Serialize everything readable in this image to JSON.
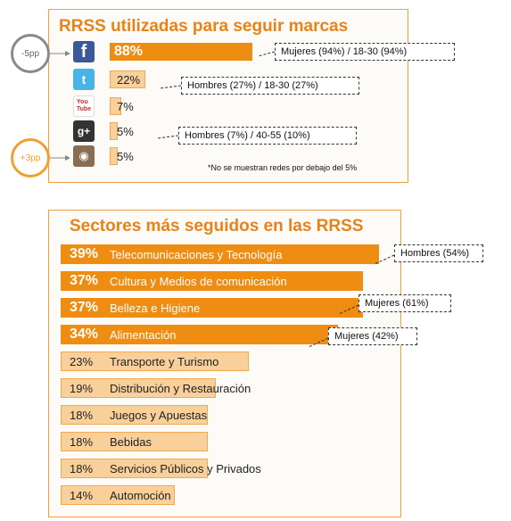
{
  "colors": {
    "accent": "#ef8c12",
    "light_bar": "#f9d09a",
    "badge_down": "#8a8a8a",
    "badge_up": "#f0a030"
  },
  "networks_chart": {
    "title": "RRSS utilizadas para seguir marcas",
    "note": "*No se muestran redes por debajo del 5%",
    "items": [
      {
        "icon": "facebook-icon",
        "label": "88%",
        "value": 88,
        "callout": "Mujeres (94%) / 18-30 (94%)",
        "badge": "-5pp"
      },
      {
        "icon": "twitter-icon",
        "label": "22%",
        "value": 22,
        "callout": "Hombres (27%) / 18-30 (27%)",
        "badge": ""
      },
      {
        "icon": "youtube-icon",
        "label": "7%",
        "value": 7,
        "callout": "",
        "badge": ""
      },
      {
        "icon": "googleplus-icon",
        "label": "5%",
        "value": 5,
        "callout": "Hombres (7%) / 40-55 (10%)",
        "badge": ""
      },
      {
        "icon": "instagram-icon",
        "label": "5%",
        "value": 5,
        "callout": "",
        "badge": "+3pp"
      }
    ]
  },
  "sectors_chart": {
    "title": "Sectores más seguidos en las RRSS",
    "items": [
      {
        "label": "Telecomunicaciones  y Tecnología",
        "pct": "39%",
        "value": 39,
        "callout": "Hombres (54%)"
      },
      {
        "label": "Cultura y Medios de comunicación",
        "pct": "37%",
        "value": 37,
        "callout": ""
      },
      {
        "label": "Belleza e Higiene",
        "pct": "37%",
        "value": 37,
        "callout": "Mujeres (61%)"
      },
      {
        "label": "Alimentación",
        "pct": "34%",
        "value": 34,
        "callout": "Mujeres (42%)"
      },
      {
        "label": "Transporte y Turismo",
        "pct": "23%",
        "value": 23,
        "callout": ""
      },
      {
        "label": "Distribución y Restauración",
        "pct": "19%",
        "value": 19,
        "callout": ""
      },
      {
        "label": "Juegos y Apuestas",
        "pct": "18%",
        "value": 18,
        "callout": ""
      },
      {
        "label": "Bebidas",
        "pct": "18%",
        "value": 18,
        "callout": ""
      },
      {
        "label": "Servicios Públicos y Privados",
        "pct": "18%",
        "value": 18,
        "callout": ""
      },
      {
        "label": "Automoción",
        "pct": "14%",
        "value": 14,
        "callout": ""
      }
    ]
  },
  "chart_data": [
    {
      "type": "bar",
      "title": "RRSS utilizadas para seguir marcas",
      "categories": [
        "Facebook",
        "Twitter",
        "YouTube",
        "Google+",
        "Instagram"
      ],
      "values": [
        88,
        22,
        7,
        5,
        5
      ],
      "xlabel": "",
      "ylabel": "",
      "grid": false
    },
    {
      "type": "bar",
      "title": "Sectores más seguidos en las RRSS",
      "categories": [
        "Telecomunicaciones  y Tecnología",
        "Cultura y Medios de comunicación",
        "Belleza e Higiene",
        "Alimentación",
        "Transporte y Turismo",
        "Distribución y Restauración",
        "Juegos y Apuestas",
        "Bebidas",
        "Servicios Públicos y Privados",
        "Automoción"
      ],
      "values": [
        39,
        37,
        37,
        34,
        23,
        19,
        18,
        18,
        18,
        14
      ],
      "xlabel": "",
      "ylabel": "",
      "grid": false
    }
  ]
}
